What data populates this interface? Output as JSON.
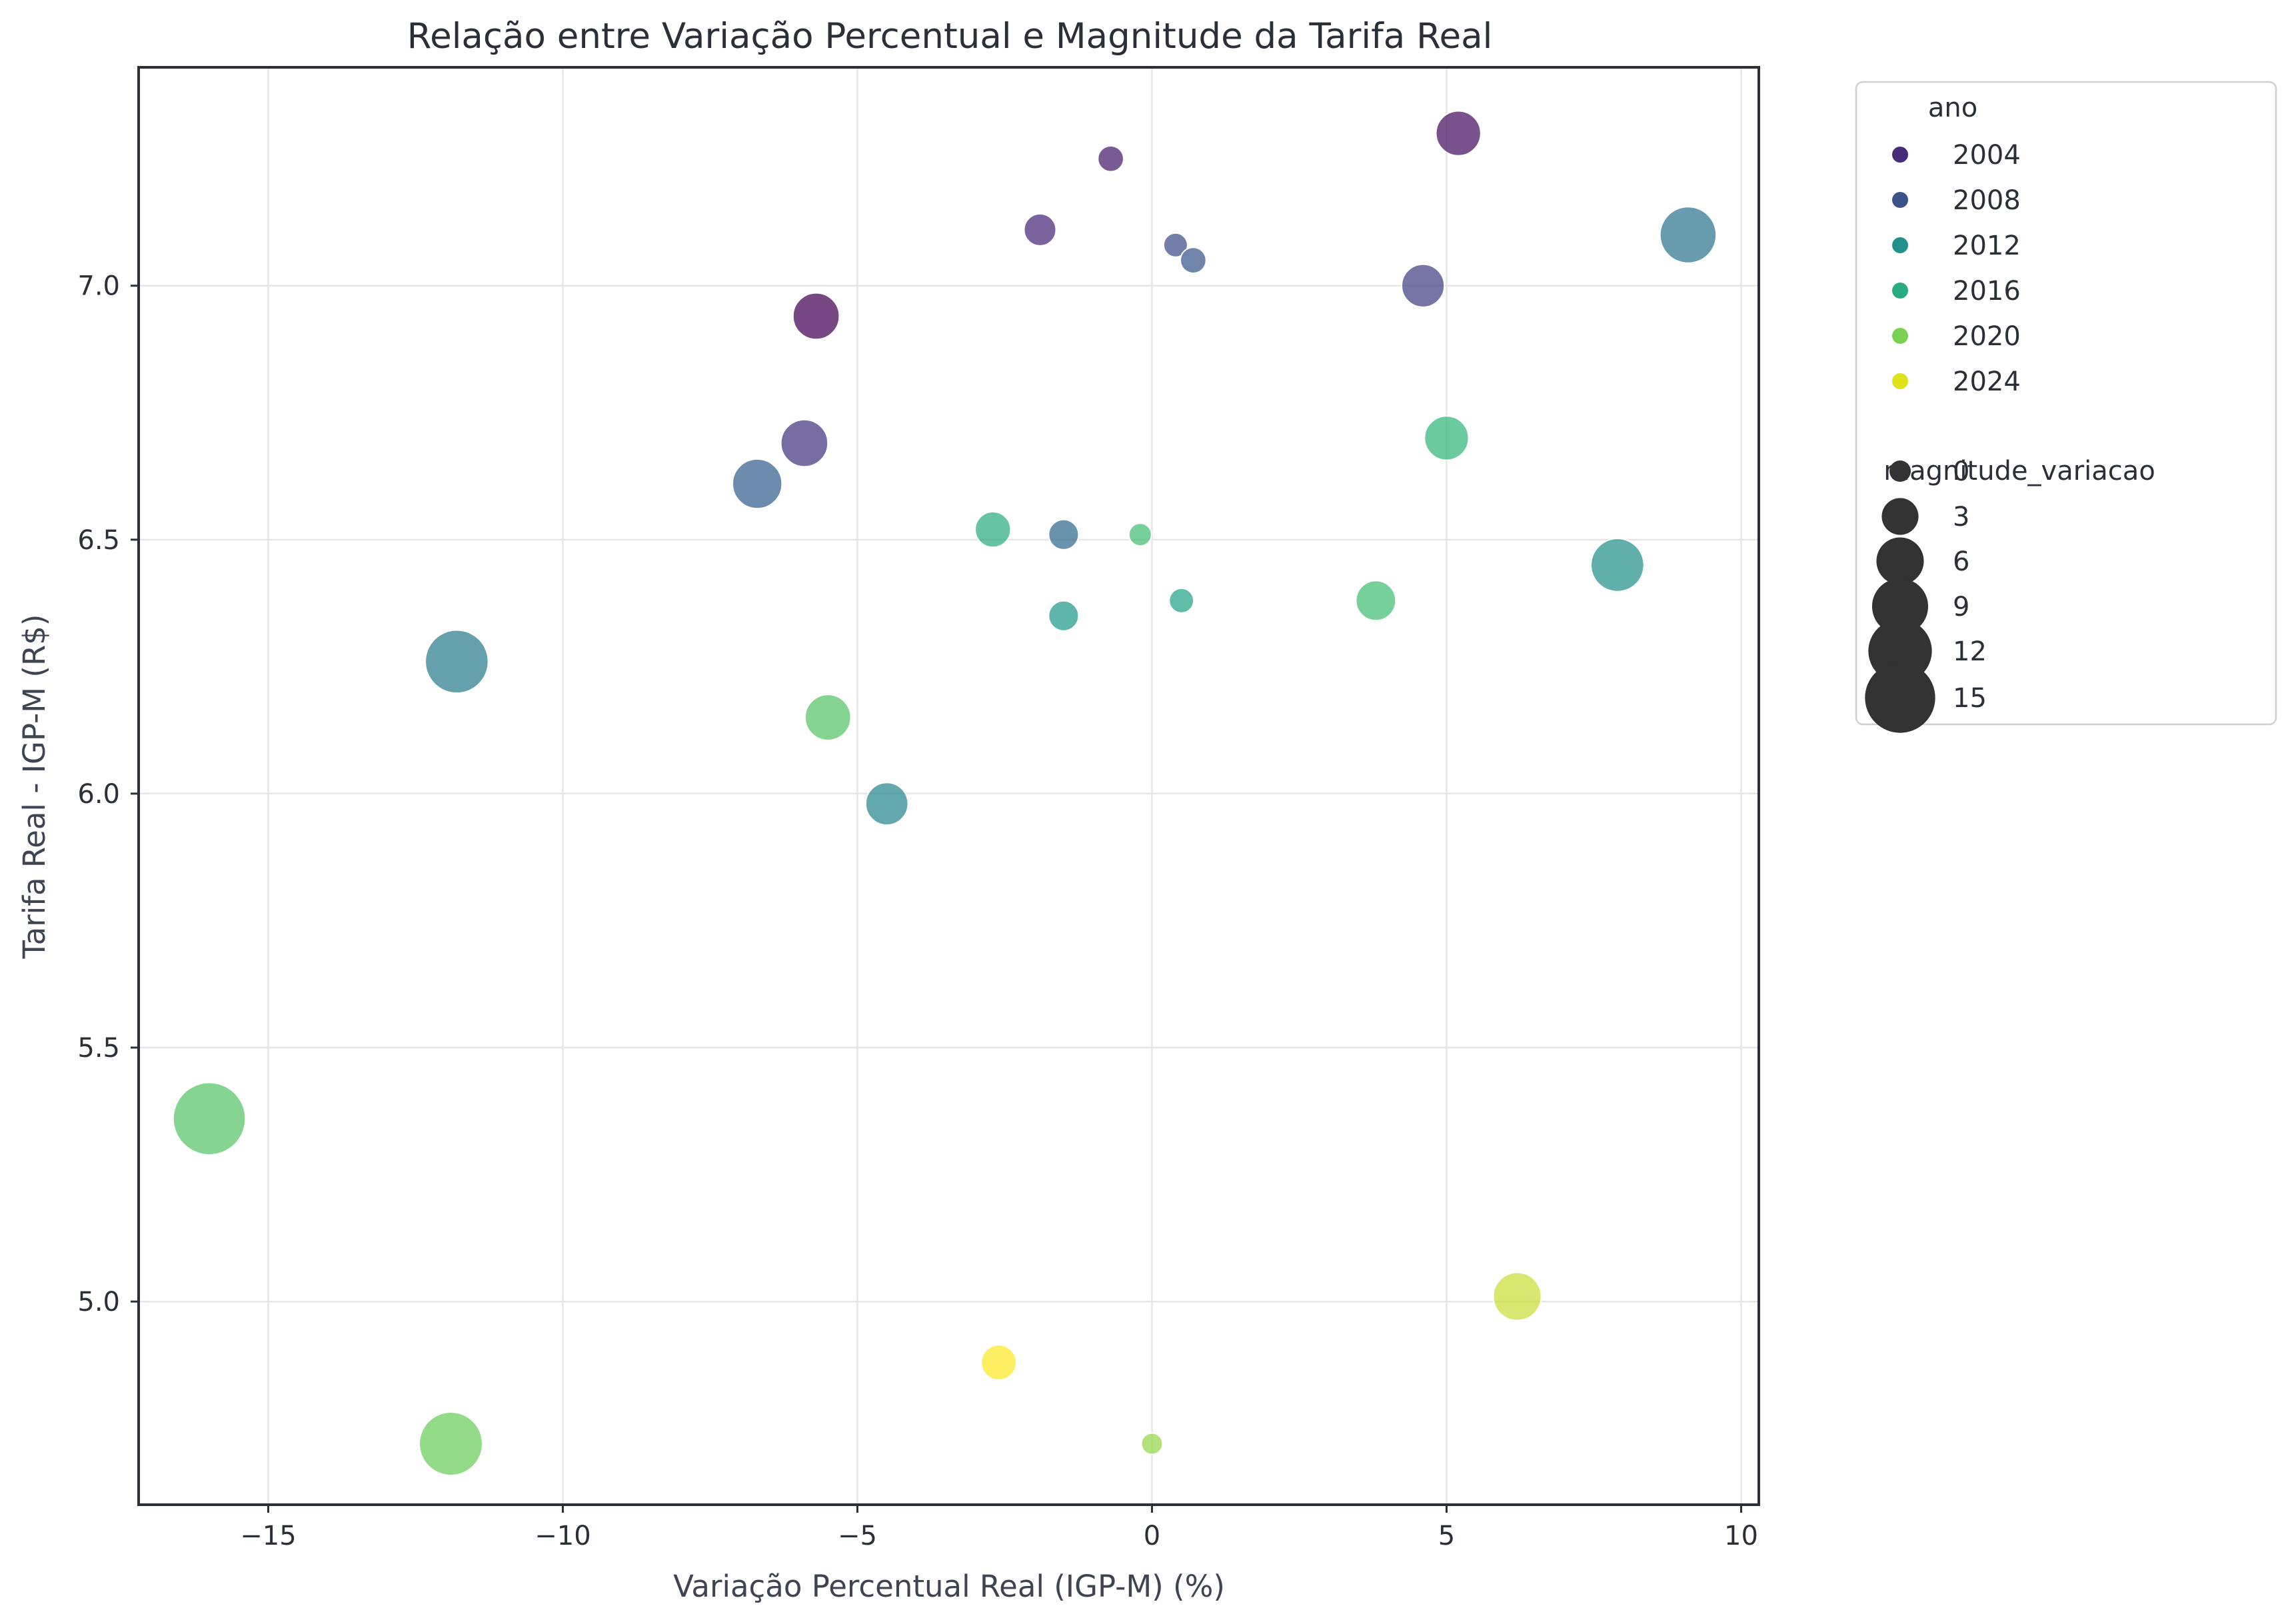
{
  "chart_data": {
    "type": "scatter",
    "title": "Relação entre Variação Percentual e Magnitude da Tarifa Real",
    "xlabel": "Variação Percentual Real (IGP-M) (%)",
    "ylabel": "Tarifa Real - IGP-M (R$)",
    "xlim": [
      -17.2,
      10.3
    ],
    "ylim": [
      4.6,
      7.43
    ],
    "xticks": [
      -15,
      -10,
      -5,
      0,
      5,
      10
    ],
    "xtick_labels": [
      "−15",
      "−10",
      "−5",
      "0",
      "5",
      "10"
    ],
    "yticks": [
      5.0,
      5.5,
      6.0,
      6.5,
      7.0
    ],
    "ytick_labels": [
      "5.0",
      "5.5",
      "6.0",
      "6.5",
      "7.0"
    ],
    "grid": true,
    "hue_variable": "ano",
    "size_variable": "magnitude_variacao",
    "hue_range": [
      2002,
      2025
    ],
    "legend": {
      "position": "outside-right",
      "hue_title": "ano",
      "hue_entries": [
        {
          "label": "2004",
          "value": 2004,
          "color": "#472c7a"
        },
        {
          "label": "2008",
          "value": 2008,
          "color": "#3b528b"
        },
        {
          "label": "2012",
          "value": 2012,
          "color": "#21918c"
        },
        {
          "label": "2016",
          "value": 2016,
          "color": "#27ad81"
        },
        {
          "label": "2020",
          "value": 2020,
          "color": "#7ad151"
        },
        {
          "label": "2024",
          "value": 2024,
          "color": "#dde318"
        }
      ],
      "size_title": "magnitude_variacao",
      "size_entries": [
        {
          "label": "0",
          "value": 0
        },
        {
          "label": "3",
          "value": 3
        },
        {
          "label": "6",
          "value": 6
        },
        {
          "label": "9",
          "value": 9
        },
        {
          "label": "12",
          "value": 12
        },
        {
          "label": "15",
          "value": 15
        }
      ]
    },
    "points": [
      {
        "x": -5.7,
        "y": 6.94,
        "ano": 2002,
        "magnitude": 5.7
      },
      {
        "x": 5.2,
        "y": 7.3,
        "ano": 2003,
        "magnitude": 5.2
      },
      {
        "x": -0.7,
        "y": 7.25,
        "ano": 2004,
        "magnitude": 0.7
      },
      {
        "x": -1.9,
        "y": 7.11,
        "ano": 2005,
        "magnitude": 1.9
      },
      {
        "x": -5.9,
        "y": 6.69,
        "ano": 2006,
        "magnitude": 5.9
      },
      {
        "x": 4.6,
        "y": 7.0,
        "ano": 2007,
        "magnitude": 4.6
      },
      {
        "x": 0.4,
        "y": 7.08,
        "ano": 2008,
        "magnitude": 0.4
      },
      {
        "x": 0.7,
        "y": 7.05,
        "ano": 2009,
        "magnitude": 0.7
      },
      {
        "x": -6.7,
        "y": 6.61,
        "ano": 2010,
        "magnitude": 6.7
      },
      {
        "x": -1.5,
        "y": 6.51,
        "ano": 2011,
        "magnitude": 1.5
      },
      {
        "x": 9.1,
        "y": 7.1,
        "ano": 2012,
        "magnitude": 9.1
      },
      {
        "x": -11.8,
        "y": 6.26,
        "ano": 2013,
        "magnitude": 11.8
      },
      {
        "x": -4.5,
        "y": 5.98,
        "ano": 2014,
        "magnitude": 4.5
      },
      {
        "x": 7.9,
        "y": 6.45,
        "ano": 2015,
        "magnitude": 7.9
      },
      {
        "x": -1.5,
        "y": 6.35,
        "ano": 2016,
        "magnitude": 1.5
      },
      {
        "x": 0.5,
        "y": 6.38,
        "ano": 2017,
        "magnitude": 0.5
      },
      {
        "x": -2.7,
        "y": 6.52,
        "ano": 2018,
        "magnitude": 2.7
      },
      {
        "x": 5.0,
        "y": 6.7,
        "ano": 2019,
        "magnitude": 5.0
      },
      {
        "x": -0.2,
        "y": 6.51,
        "ano": 2020,
        "magnitude": 0.2
      },
      {
        "x": 3.8,
        "y": 6.38,
        "ano": 2020,
        "magnitude": 3.8
      },
      {
        "x": -5.5,
        "y": 6.15,
        "ano": 2021,
        "magnitude": 5.5
      },
      {
        "x": -16.0,
        "y": 5.36,
        "ano": 2021,
        "magnitude": 16.0
      },
      {
        "x": -11.9,
        "y": 4.72,
        "ano": 2022,
        "magnitude": 11.9
      },
      {
        "x": 0.0,
        "y": 4.72,
        "ano": 2023,
        "magnitude": 0.0
      },
      {
        "x": 6.2,
        "y": 5.01,
        "ano": 2024,
        "magnitude": 6.2
      },
      {
        "x": -2.6,
        "y": 4.88,
        "ano": 2025,
        "magnitude": 2.6
      }
    ]
  }
}
